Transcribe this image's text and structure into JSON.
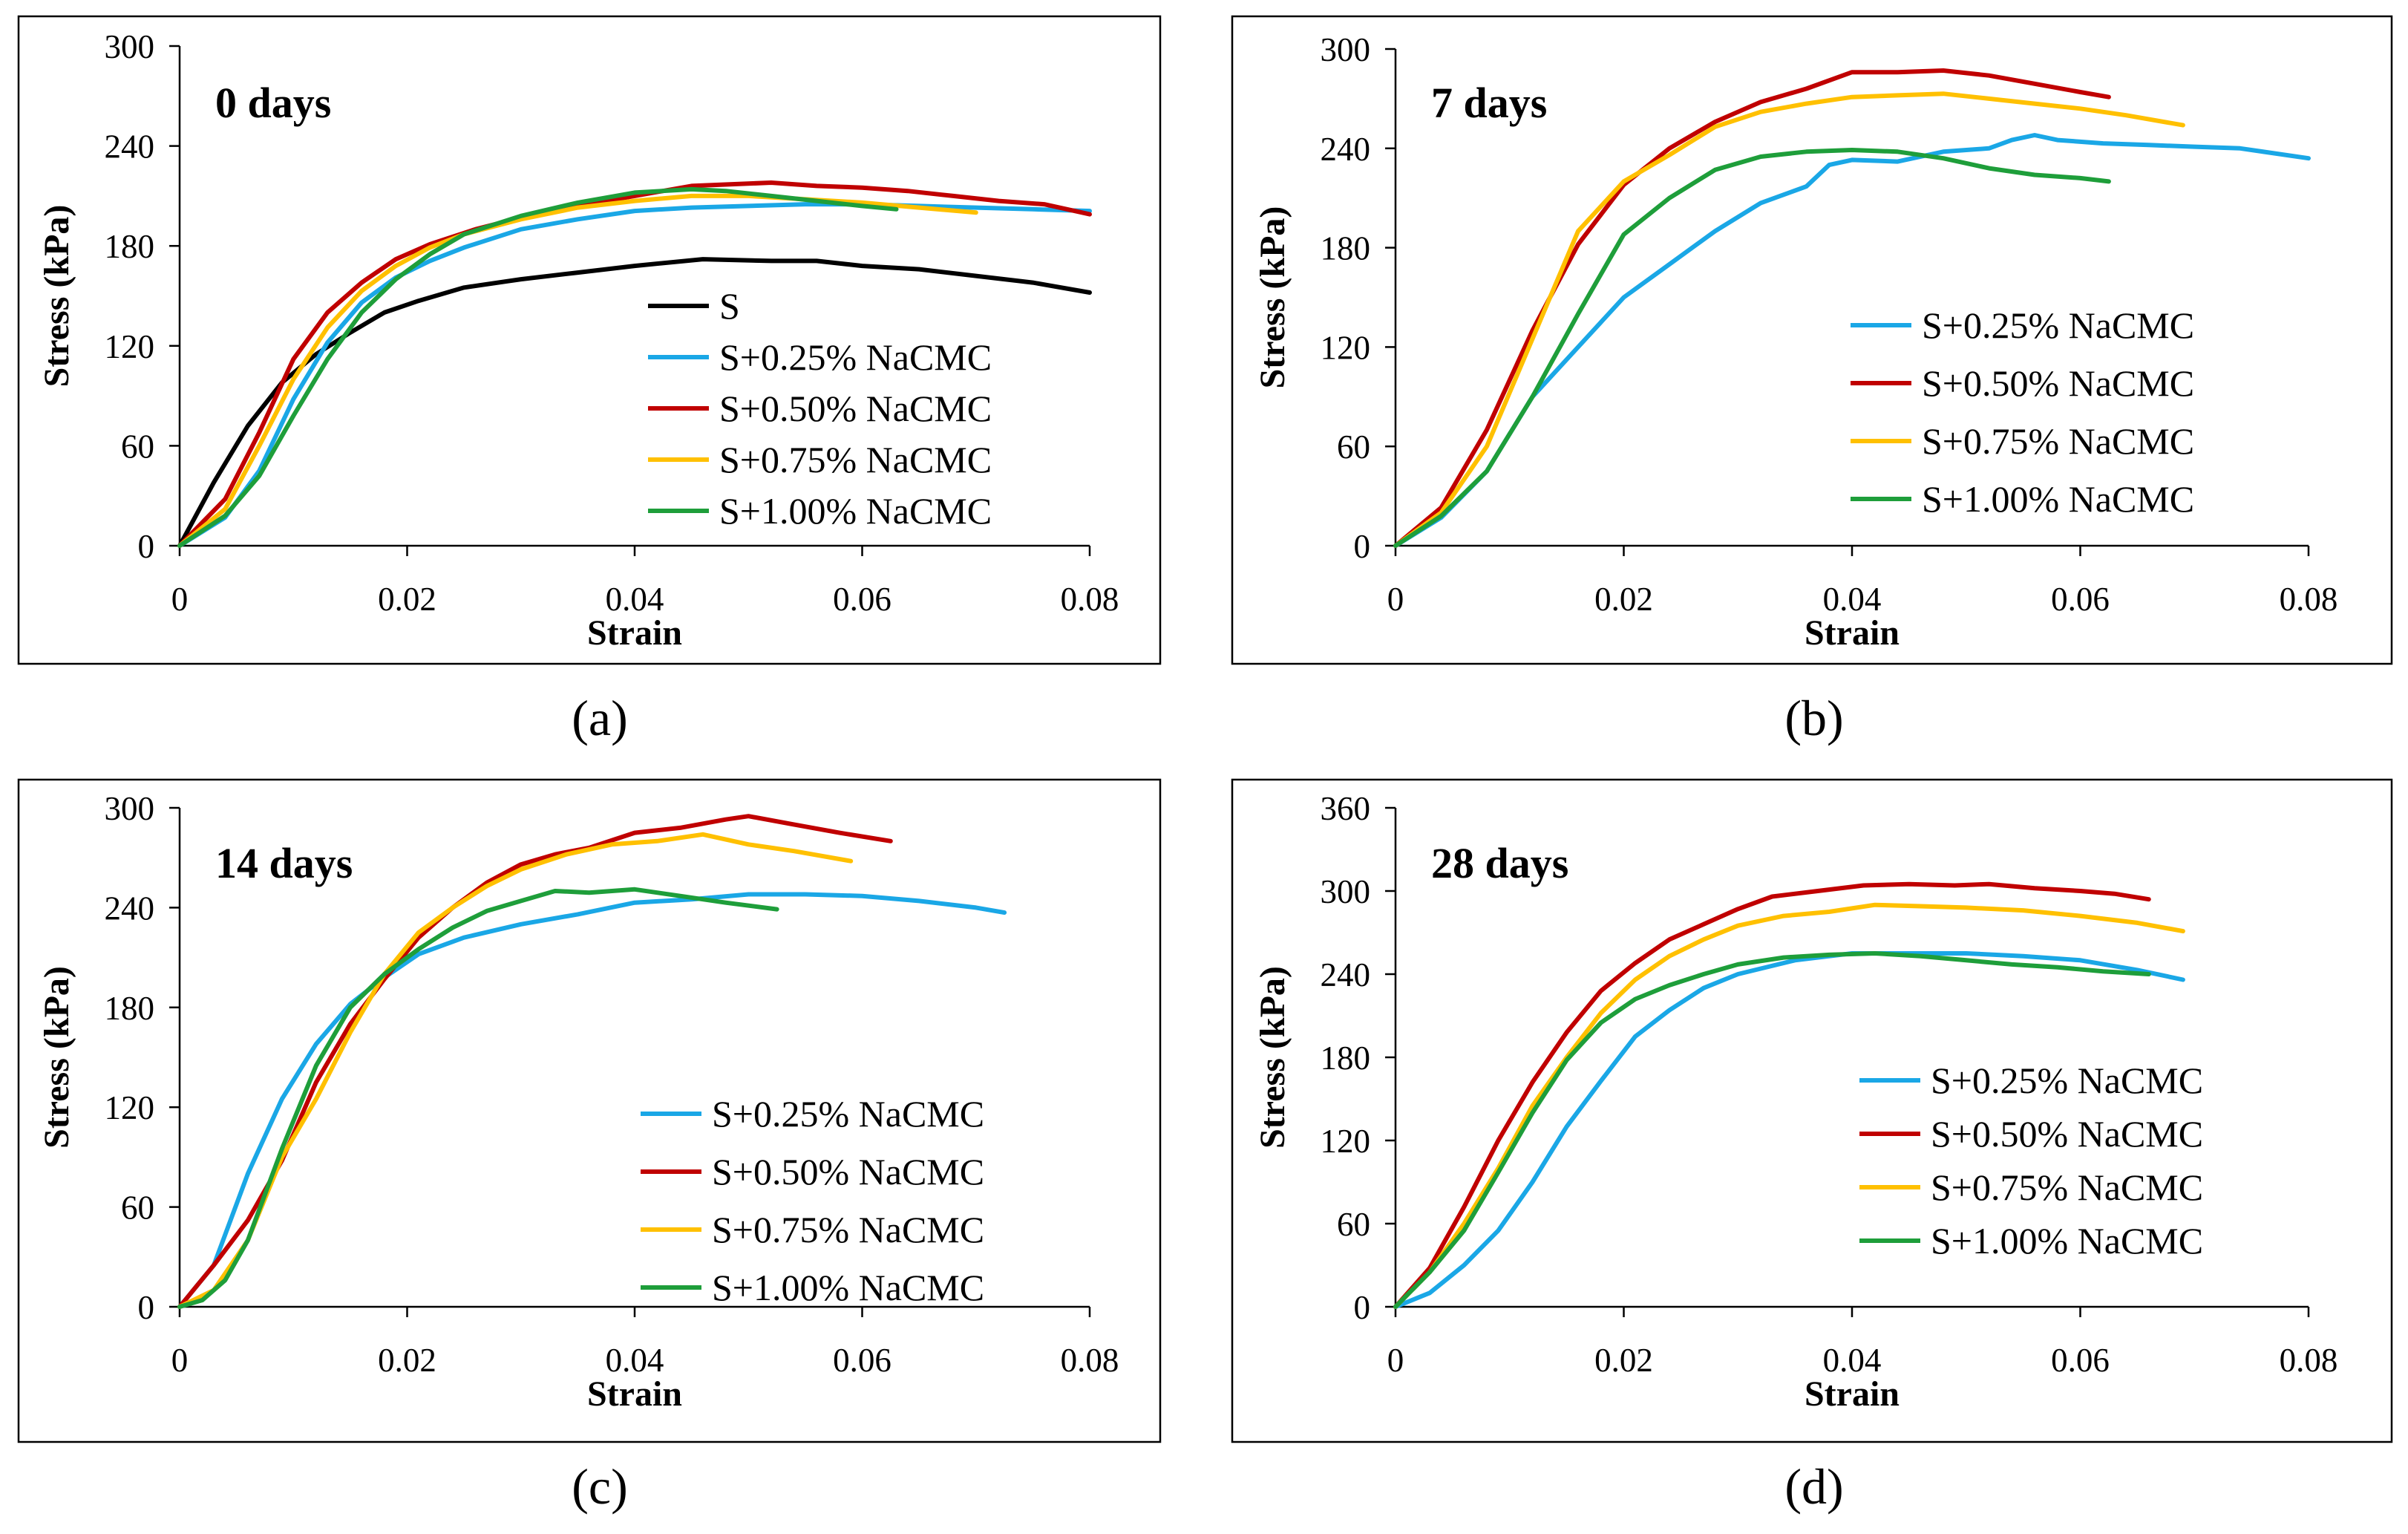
{
  "colors": {
    "S": "#000000",
    "S+0.25% NaCMC": "#1aa7e6",
    "S+0.50% NaCMC": "#c00000",
    "S+0.75% NaCMC": "#ffc000",
    "S+1.00% NaCMC": "#1e9e3a"
  },
  "chart_data": [
    {
      "type": "line",
      "panel": "(a)",
      "title": "0 days",
      "xlabel": "Strain",
      "ylabel": "Stress (kPa)",
      "xlim": [
        0,
        0.08
      ],
      "ylim": [
        0,
        300
      ],
      "xticks": [
        "0",
        "0.02",
        "0.04",
        "0.06",
        "0.08"
      ],
      "yticks": [
        "0",
        "60",
        "120",
        "180",
        "240",
        "300"
      ],
      "legend_position": "lower-right",
      "grid": false,
      "series": [
        {
          "name": "S",
          "x": [
            0,
            0.003,
            0.006,
            0.009,
            0.012,
            0.015,
            0.018,
            0.021,
            0.025,
            0.03,
            0.035,
            0.04,
            0.046,
            0.052,
            0.056,
            0.06,
            0.065,
            0.07,
            0.075,
            0.08
          ],
          "y": [
            0,
            38,
            72,
            98,
            115,
            128,
            140,
            147,
            155,
            160,
            164,
            168,
            172,
            171,
            171,
            168,
            166,
            162,
            158,
            152
          ]
        },
        {
          "name": "S+0.25% NaCMC",
          "x": [
            0,
            0.004,
            0.007,
            0.01,
            0.013,
            0.016,
            0.019,
            0.022,
            0.025,
            0.03,
            0.035,
            0.04,
            0.045,
            0.05,
            0.055,
            0.06,
            0.065,
            0.07,
            0.075,
            0.08
          ],
          "y": [
            0,
            17,
            45,
            88,
            122,
            146,
            161,
            171,
            179,
            190,
            196,
            201,
            203,
            204,
            205,
            205,
            204,
            203,
            202,
            201
          ]
        },
        {
          "name": "S+0.50% NaCMC",
          "x": [
            0,
            0.004,
            0.007,
            0.01,
            0.013,
            0.016,
            0.019,
            0.022,
            0.026,
            0.03,
            0.035,
            0.04,
            0.045,
            0.052,
            0.056,
            0.06,
            0.064,
            0.068,
            0.072,
            0.076,
            0.08
          ],
          "y": [
            0,
            28,
            68,
            112,
            140,
            158,
            172,
            181,
            190,
            197,
            204,
            210,
            216,
            218,
            216,
            215,
            213,
            210,
            207,
            205,
            199
          ]
        },
        {
          "name": "S+0.75% NaCMC",
          "x": [
            0,
            0.004,
            0.007,
            0.01,
            0.013,
            0.016,
            0.019,
            0.022,
            0.025,
            0.03,
            0.035,
            0.04,
            0.045,
            0.05,
            0.055,
            0.06,
            0.065,
            0.07
          ],
          "y": [
            0,
            22,
            60,
            100,
            131,
            153,
            168,
            179,
            187,
            196,
            203,
            207,
            210,
            210,
            208,
            206,
            203,
            200
          ]
        },
        {
          "name": "S+1.00% NaCMC",
          "x": [
            0,
            0.004,
            0.007,
            0.01,
            0.013,
            0.016,
            0.019,
            0.022,
            0.025,
            0.03,
            0.035,
            0.04,
            0.045,
            0.048,
            0.052,
            0.056,
            0.06,
            0.063
          ],
          "y": [
            0,
            18,
            42,
            78,
            112,
            140,
            160,
            175,
            187,
            198,
            206,
            212,
            214,
            213,
            210,
            207,
            204,
            202
          ]
        }
      ]
    },
    {
      "type": "line",
      "panel": "(b)",
      "title": "7 days",
      "xlabel": "Strain",
      "ylabel": "Stress (kPa)",
      "xlim": [
        0,
        0.08
      ],
      "ylim": [
        0,
        300
      ],
      "xticks": [
        "0",
        "0.02",
        "0.04",
        "0.06",
        "0.08"
      ],
      "yticks": [
        "0",
        "60",
        "120",
        "180",
        "240",
        "300"
      ],
      "legend_position": "lower-right",
      "grid": false,
      "series": [
        {
          "name": "S+0.25% NaCMC",
          "x": [
            0,
            0.004,
            0.008,
            0.012,
            0.016,
            0.02,
            0.024,
            0.028,
            0.032,
            0.036,
            0.038,
            0.04,
            0.044,
            0.048,
            0.052,
            0.054,
            0.056,
            0.058,
            0.062,
            0.066,
            0.07,
            0.074,
            0.08
          ],
          "y": [
            0,
            17,
            45,
            90,
            120,
            150,
            170,
            190,
            207,
            217,
            230,
            233,
            232,
            238,
            240,
            245,
            248,
            245,
            243,
            242,
            241,
            240,
            234
          ]
        },
        {
          "name": "S+0.50% NaCMC",
          "x": [
            0,
            0.004,
            0.008,
            0.012,
            0.016,
            0.02,
            0.024,
            0.028,
            0.032,
            0.036,
            0.04,
            0.044,
            0.048,
            0.052,
            0.056,
            0.06,
            0.0625
          ],
          "y": [
            0,
            23,
            70,
            130,
            182,
            218,
            240,
            256,
            268,
            276,
            286,
            286,
            287,
            284,
            279,
            274,
            271
          ]
        },
        {
          "name": "S+0.75% NaCMC",
          "x": [
            0,
            0.004,
            0.008,
            0.012,
            0.016,
            0.02,
            0.024,
            0.028,
            0.032,
            0.036,
            0.04,
            0.044,
            0.048,
            0.052,
            0.056,
            0.06,
            0.064,
            0.069
          ],
          "y": [
            0,
            20,
            60,
            125,
            190,
            220,
            236,
            253,
            262,
            267,
            271,
            272,
            273,
            270,
            267,
            264,
            260,
            254
          ]
        },
        {
          "name": "S+1.00% NaCMC",
          "x": [
            0,
            0.004,
            0.008,
            0.012,
            0.016,
            0.02,
            0.024,
            0.028,
            0.032,
            0.036,
            0.04,
            0.044,
            0.048,
            0.052,
            0.056,
            0.06,
            0.0625
          ],
          "y": [
            0,
            18,
            45,
            90,
            140,
            188,
            210,
            227,
            235,
            238,
            239,
            238,
            234,
            228,
            224,
            222,
            220
          ]
        }
      ]
    },
    {
      "type": "line",
      "panel": "(c)",
      "title": "14 days",
      "xlabel": "Strain",
      "ylabel": "Stress (kPa)",
      "xlim": [
        0,
        0.08
      ],
      "ylim": [
        0,
        300
      ],
      "xticks": [
        "0",
        "0.02",
        "0.04",
        "0.06",
        "0.08"
      ],
      "yticks": [
        "0",
        "60",
        "120",
        "180",
        "240",
        "300"
      ],
      "legend_position": "lower-right",
      "grid": false,
      "series": [
        {
          "name": "S+0.25% NaCMC",
          "x": [
            0,
            0.003,
            0.006,
            0.009,
            0.012,
            0.015,
            0.018,
            0.021,
            0.025,
            0.03,
            0.035,
            0.04,
            0.045,
            0.05,
            0.055,
            0.06,
            0.065,
            0.07,
            0.0725
          ],
          "y": [
            0,
            25,
            80,
            125,
            158,
            182,
            198,
            212,
            222,
            230,
            236,
            243,
            245,
            248,
            248,
            247,
            244,
            240,
            237
          ]
        },
        {
          "name": "S+0.50% NaCMC",
          "x": [
            0,
            0.003,
            0.006,
            0.009,
            0.012,
            0.015,
            0.018,
            0.021,
            0.024,
            0.027,
            0.03,
            0.033,
            0.036,
            0.04,
            0.044,
            0.048,
            0.05,
            0.054,
            0.058,
            0.0625
          ],
          "y": [
            0,
            25,
            52,
            88,
            135,
            170,
            197,
            222,
            240,
            255,
            266,
            272,
            276,
            285,
            288,
            293,
            295,
            290,
            285,
            280
          ]
        },
        {
          "name": "S+0.75% NaCMC",
          "x": [
            0,
            0.003,
            0.006,
            0.009,
            0.012,
            0.015,
            0.018,
            0.021,
            0.024,
            0.027,
            0.03,
            0.034,
            0.038,
            0.042,
            0.046,
            0.05,
            0.054,
            0.059
          ],
          "y": [
            0,
            10,
            40,
            90,
            125,
            165,
            200,
            225,
            240,
            253,
            263,
            272,
            278,
            280,
            284,
            278,
            274,
            268
          ]
        },
        {
          "name": "S+1.00% NaCMC",
          "x": [
            0,
            0.002,
            0.004,
            0.006,
            0.009,
            0.012,
            0.015,
            0.018,
            0.021,
            0.024,
            0.027,
            0.03,
            0.033,
            0.036,
            0.04,
            0.044,
            0.048,
            0.0525
          ],
          "y": [
            0,
            4,
            16,
            40,
            95,
            145,
            180,
            200,
            215,
            228,
            238,
            244,
            250,
            249,
            251,
            247,
            243,
            239
          ]
        }
      ]
    },
    {
      "type": "line",
      "panel": "(d)",
      "title": "28 days",
      "xlabel": "Strain",
      "ylabel": "Stress (kPa)",
      "xlim": [
        0,
        0.08
      ],
      "ylim": [
        0,
        360
      ],
      "xticks": [
        "0",
        "0.02",
        "0.04",
        "0.06",
        "0.08"
      ],
      "yticks": [
        "0",
        "60",
        "120",
        "180",
        "240",
        "300",
        "360"
      ],
      "legend_position": "lower-right",
      "grid": false,
      "series": [
        {
          "name": "S+0.25% NaCMC",
          "x": [
            0,
            0.003,
            0.006,
            0.009,
            0.012,
            0.015,
            0.018,
            0.021,
            0.024,
            0.027,
            0.03,
            0.035,
            0.04,
            0.045,
            0.05,
            0.055,
            0.06,
            0.065,
            0.069
          ],
          "y": [
            0,
            10,
            30,
            55,
            90,
            130,
            163,
            195,
            214,
            230,
            240,
            250,
            255,
            255,
            255,
            253,
            250,
            243,
            236
          ]
        },
        {
          "name": "S+0.50% NaCMC",
          "x": [
            0,
            0.003,
            0.006,
            0.009,
            0.012,
            0.015,
            0.018,
            0.021,
            0.024,
            0.027,
            0.03,
            0.033,
            0.037,
            0.041,
            0.045,
            0.049,
            0.052,
            0.056,
            0.06,
            0.063,
            0.066
          ],
          "y": [
            0,
            28,
            72,
            120,
            162,
            198,
            228,
            248,
            265,
            276,
            287,
            296,
            300,
            304,
            305,
            304,
            305,
            302,
            300,
            298,
            294
          ]
        },
        {
          "name": "S+0.75% NaCMC",
          "x": [
            0,
            0.003,
            0.006,
            0.009,
            0.012,
            0.015,
            0.018,
            0.021,
            0.024,
            0.027,
            0.03,
            0.034,
            0.038,
            0.042,
            0.046,
            0.05,
            0.055,
            0.06,
            0.065,
            0.069
          ],
          "y": [
            0,
            25,
            60,
            100,
            145,
            180,
            212,
            236,
            253,
            265,
            275,
            282,
            285,
            290,
            289,
            288,
            286,
            282,
            277,
            271
          ]
        },
        {
          "name": "S+1.00% NaCMC",
          "x": [
            0,
            0.003,
            0.006,
            0.009,
            0.012,
            0.015,
            0.018,
            0.021,
            0.024,
            0.027,
            0.03,
            0.034,
            0.038,
            0.042,
            0.046,
            0.05,
            0.054,
            0.058,
            0.062,
            0.066
          ],
          "y": [
            0,
            25,
            55,
            97,
            140,
            178,
            205,
            222,
            232,
            240,
            247,
            252,
            254,
            255,
            253,
            250,
            247,
            245,
            242,
            240
          ]
        }
      ]
    }
  ]
}
